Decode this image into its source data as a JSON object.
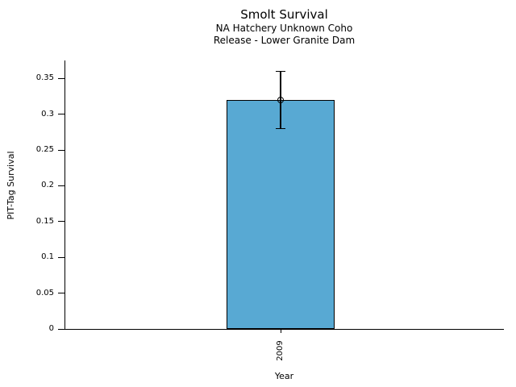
{
  "chart_data": {
    "type": "bar",
    "title": "Smolt Survival",
    "subtitle": [
      "NA Hatchery Unknown Coho",
      "Release - Lower Granite Dam"
    ],
    "xlabel": "Year",
    "ylabel": "PIT-Tag Survival",
    "categories": [
      "2009"
    ],
    "values": [
      0.32
    ],
    "error_low": [
      0.28
    ],
    "error_high": [
      0.36
    ],
    "ylim": [
      0,
      0.375
    ],
    "yticks": [
      0,
      0.05,
      0.1,
      0.15,
      0.2,
      0.25,
      0.3,
      0.35
    ],
    "ytick_labels": [
      "0",
      "0.05",
      "0.1",
      "0.15",
      "0.2",
      "0.25",
      "0.3",
      "0.35"
    ],
    "bar_color": "#58A9D3",
    "bar_edge_color": "#000000",
    "axis_color": "#000000",
    "marker": "open-circle",
    "grid": false,
    "legend_position": "none"
  }
}
